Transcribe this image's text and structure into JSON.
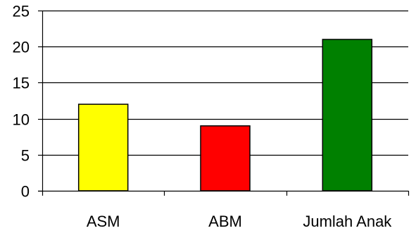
{
  "chart_data": {
    "type": "bar",
    "categories": [
      "ASM",
      "ABM",
      "Jumlah Anak"
    ],
    "values": [
      12,
      9,
      21
    ],
    "colors": [
      "#ffff00",
      "#ff0000",
      "#008000"
    ],
    "ylim": [
      0,
      25
    ],
    "yticks": [
      0,
      5,
      10,
      15,
      20,
      25
    ],
    "ytick_labels": [
      "0",
      "5",
      "10",
      "15",
      "20",
      "25"
    ],
    "grid": true,
    "legend": false
  }
}
